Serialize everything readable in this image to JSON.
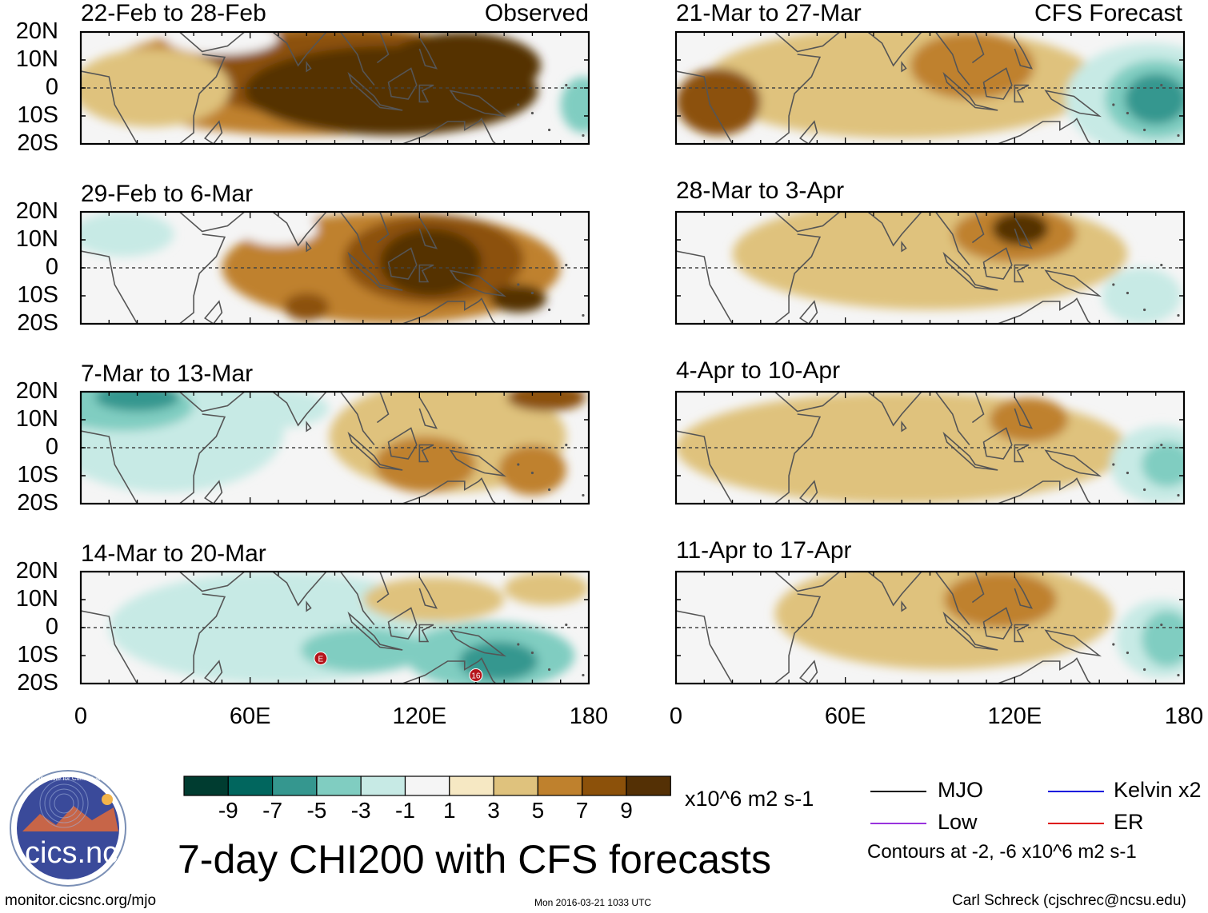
{
  "chart_data": {
    "type": "heatmap",
    "title": "7-day CHI200 with CFS forecasts",
    "variable": "CHI200",
    "units": "x10^6 m2 s-1",
    "columns": [
      "Observed",
      "CFS Forecast"
    ],
    "lat_ticks": [
      "20N",
      "10N",
      "0",
      "10S",
      "20S"
    ],
    "lon_ticks": [
      "0",
      "60E",
      "120E",
      "180"
    ],
    "ylim": [
      -20,
      20
    ],
    "xlim": [
      0,
      180
    ],
    "colorbar": {
      "ticks": [
        "-9",
        "-7",
        "-5",
        "-3",
        "-1",
        "1",
        "3",
        "5",
        "7",
        "9"
      ],
      "bounds": [
        -11,
        -9,
        -7,
        -5,
        -3,
        -1,
        1,
        3,
        5,
        7,
        9,
        11
      ],
      "colors": [
        "#003c30",
        "#01665e",
        "#35978f",
        "#80cdc1",
        "#c7eae5",
        "#f5f5f5",
        "#f6e8c3",
        "#dfc27d",
        "#bf812d",
        "#8c510a",
        "#543005"
      ]
    },
    "panels": [
      {
        "id": "obs-1",
        "column": "Observed",
        "period": "22-Feb to 28-Feb",
        "label": "Observed",
        "blobs": [
          {
            "lon": 80,
            "lat": 3,
            "rlon": 75,
            "rlat": 20,
            "v": 5
          },
          {
            "lon": 95,
            "lat": 5,
            "rlon": 58,
            "rlat": 16,
            "v": 7
          },
          {
            "lon": 110,
            "lat": -1,
            "rlon": 52,
            "rlat": 16,
            "v": 9
          },
          {
            "lon": 135,
            "lat": 8,
            "rlon": 28,
            "rlat": 12,
            "v": 9
          },
          {
            "lon": 25,
            "lat": 0,
            "rlon": 28,
            "rlat": 14,
            "v": 3
          },
          {
            "lon": 178,
            "lat": -6,
            "rlon": 8,
            "rlat": 10,
            "v": -5
          },
          {
            "lon": 50,
            "lat": 18,
            "rlon": 20,
            "rlat": 6,
            "v": -1
          }
        ],
        "contours": []
      },
      {
        "id": "obs-2",
        "column": "Observed",
        "period": "29-Feb to 6-Mar",
        "label": "",
        "blobs": [
          {
            "lon": 110,
            "lat": 0,
            "rlon": 60,
            "rlat": 20,
            "v": 5
          },
          {
            "lon": 125,
            "lat": 3,
            "rlon": 32,
            "rlat": 16,
            "v": 7
          },
          {
            "lon": 124,
            "lat": 2,
            "rlon": 18,
            "rlat": 12,
            "v": 9
          },
          {
            "lon": 155,
            "lat": -11,
            "rlon": 10,
            "rlat": 5,
            "v": 9
          },
          {
            "lon": 80,
            "lat": -14,
            "rlon": 8,
            "rlat": 5,
            "v": 7
          },
          {
            "lon": 15,
            "lat": 12,
            "rlon": 18,
            "rlat": 8,
            "v": -3
          },
          {
            "lon": 70,
            "lat": 14,
            "rlon": 14,
            "rlat": 6,
            "v": -1
          }
        ],
        "contours": []
      },
      {
        "id": "obs-3",
        "column": "Observed",
        "period": "7-Mar to 13-Mar",
        "label": "",
        "blobs": [
          {
            "lon": 30,
            "lat": 6,
            "rlon": 42,
            "rlat": 22,
            "v": -3
          },
          {
            "lon": 15,
            "lat": 15,
            "rlon": 25,
            "rlat": 9,
            "v": -5
          },
          {
            "lon": 20,
            "lat": 18,
            "rlon": 15,
            "rlat": 5,
            "v": -7
          },
          {
            "lon": 68,
            "lat": 14,
            "rlon": 20,
            "rlat": 7,
            "v": -3
          },
          {
            "lon": 130,
            "lat": 4,
            "rlon": 42,
            "rlat": 20,
            "v": 3
          },
          {
            "lon": 122,
            "lat": -6,
            "rlon": 18,
            "rlat": 10,
            "v": 5
          },
          {
            "lon": 160,
            "lat": -8,
            "rlon": 12,
            "rlat": 9,
            "v": 5
          },
          {
            "lon": 165,
            "lat": 18,
            "rlon": 14,
            "rlat": 5,
            "v": 7
          }
        ],
        "contours": []
      },
      {
        "id": "obs-4",
        "column": "Observed",
        "period": "14-Mar to 20-Mar",
        "label": "",
        "blobs": [
          {
            "lon": 70,
            "lat": 0,
            "rlon": 60,
            "rlat": 20,
            "v": -3
          },
          {
            "lon": 100,
            "lat": -8,
            "rlon": 22,
            "rlat": 8,
            "v": -5
          },
          {
            "lon": 145,
            "lat": -10,
            "rlon": 30,
            "rlat": 12,
            "v": -5
          },
          {
            "lon": 148,
            "lat": -12,
            "rlon": 14,
            "rlat": 7,
            "v": -7
          },
          {
            "lon": 125,
            "lat": 10,
            "rlon": 25,
            "rlat": 8,
            "v": 3
          },
          {
            "lon": 165,
            "lat": 14,
            "rlon": 15,
            "rlat": 6,
            "v": 3
          }
        ],
        "contours": []
      },
      {
        "id": "fc-1",
        "column": "CFS Forecast",
        "period": "21-Mar to 27-Mar",
        "label": "CFS Forecast",
        "blobs": [
          {
            "lon": 80,
            "lat": 2,
            "rlon": 70,
            "rlat": 20,
            "v": 3
          },
          {
            "lon": 15,
            "lat": -5,
            "rlon": 15,
            "rlat": 12,
            "v": 7
          },
          {
            "lon": 105,
            "lat": 8,
            "rlon": 22,
            "rlat": 12,
            "v": 5
          },
          {
            "lon": 168,
            "lat": -4,
            "rlon": 30,
            "rlat": 20,
            "v": -3
          },
          {
            "lon": 170,
            "lat": -4,
            "rlon": 18,
            "rlat": 14,
            "v": -5
          },
          {
            "lon": 170,
            "lat": -4,
            "rlon": 11,
            "rlat": 9,
            "v": -7
          }
        ],
        "contours": []
      },
      {
        "id": "fc-2",
        "column": "CFS Forecast",
        "period": "28-Mar to 3-Apr",
        "label": "",
        "blobs": [
          {
            "lon": 90,
            "lat": 5,
            "rlon": 70,
            "rlat": 20,
            "v": 3
          },
          {
            "lon": 120,
            "lat": 12,
            "rlon": 22,
            "rlat": 10,
            "v": 5
          },
          {
            "lon": 122,
            "lat": 14,
            "rlon": 10,
            "rlat": 6,
            "v": 9
          },
          {
            "lon": 165,
            "lat": -10,
            "rlon": 14,
            "rlat": 10,
            "v": -3
          }
        ],
        "contours": []
      },
      {
        "id": "fc-3",
        "column": "CFS Forecast",
        "period": "4-Apr to 10-Apr",
        "label": "",
        "blobs": [
          {
            "lon": 80,
            "lat": 0,
            "rlon": 80,
            "rlat": 20,
            "v": 3
          },
          {
            "lon": 125,
            "lat": 10,
            "rlon": 14,
            "rlat": 8,
            "v": 5
          },
          {
            "lon": 172,
            "lat": -6,
            "rlon": 18,
            "rlat": 14,
            "v": -3
          },
          {
            "lon": 174,
            "lat": -6,
            "rlon": 9,
            "rlat": 8,
            "v": -5
          }
        ],
        "contours": []
      },
      {
        "id": "fc-4",
        "column": "CFS Forecast",
        "period": "11-Apr to 17-Apr",
        "label": "",
        "blobs": [
          {
            "lon": 95,
            "lat": 5,
            "rlon": 60,
            "rlat": 20,
            "v": 3
          },
          {
            "lon": 115,
            "lat": 10,
            "rlon": 20,
            "rlat": 10,
            "v": 5
          },
          {
            "lon": 172,
            "lat": -4,
            "rlon": 16,
            "rlat": 14,
            "v": -3
          },
          {
            "lon": 174,
            "lat": -4,
            "rlon": 9,
            "rlat": 10,
            "v": -5
          }
        ],
        "contours": []
      }
    ],
    "legend": [
      {
        "name": "MJO",
        "color": "#000000"
      },
      {
        "name": "Kelvin x2",
        "color": "#0000dd"
      },
      {
        "name": "Low",
        "color": "#9933dd"
      },
      {
        "name": "ER",
        "color": "#dd0000"
      }
    ],
    "contour_note": "Contours at -2, -6 x10^6 m2 s-1",
    "markers": [
      {
        "panel": "obs-4",
        "text": "E",
        "lon": 85,
        "lat": -11
      },
      {
        "panel": "obs-4",
        "text": "16",
        "lon": 140,
        "lat": -17
      }
    ]
  },
  "footer": {
    "website": "monitor.cicsnc.org/mjo",
    "timestamp": "Mon 2016-03-21 1033 UTC",
    "author": "Carl Schreck (cjschrec@ncsu.edu)"
  },
  "logo": {
    "text": "cics.nc",
    "ring_text": "Cooperative Institute for Climate and Satellites"
  }
}
